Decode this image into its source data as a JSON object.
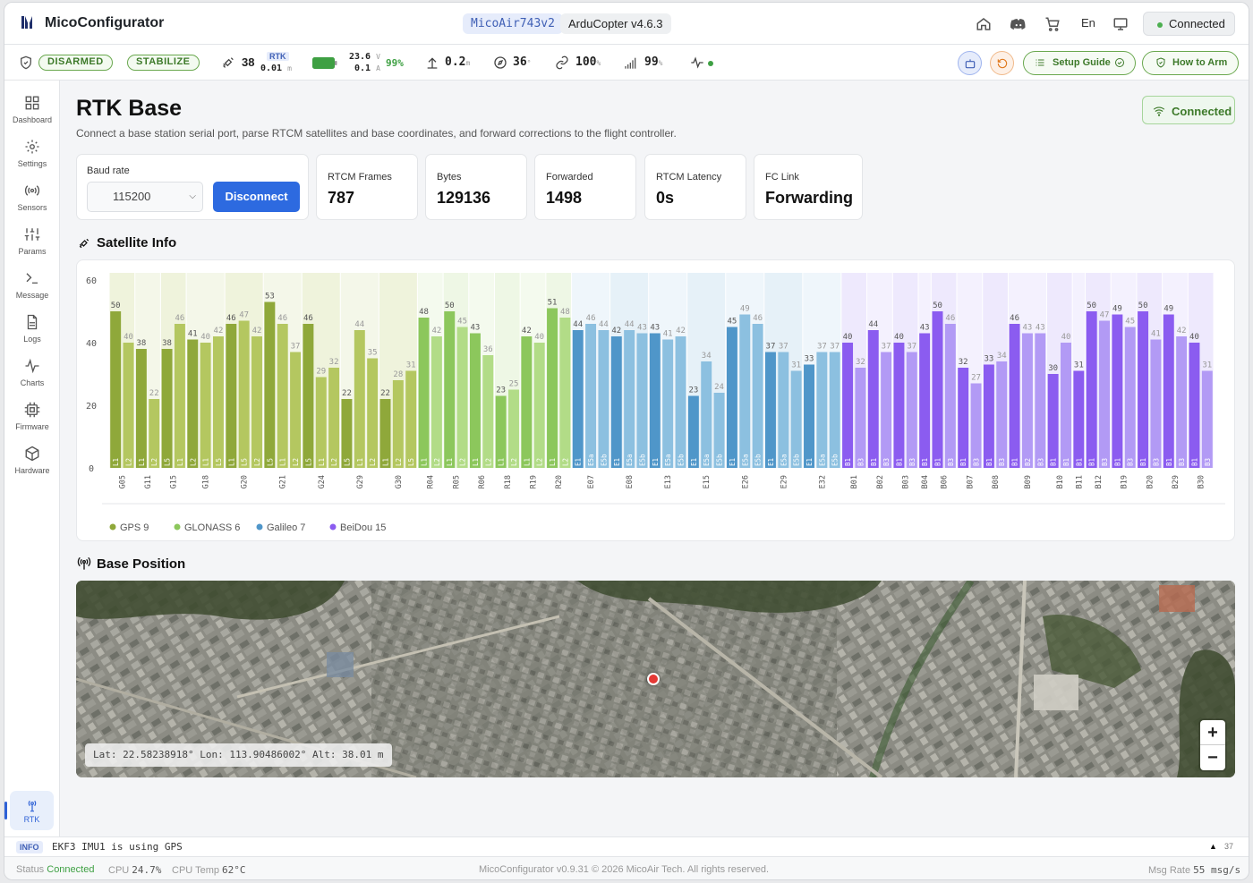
{
  "app": {
    "title": "MicoConfigurator",
    "board": "MicoAir743v2",
    "firmware": "ArduCopter v4.6.3",
    "language": "En",
    "connection": "Connected"
  },
  "status": {
    "arm": "DISARMED",
    "mode": "STABILIZE",
    "sats": "38",
    "fix_type": "RTK",
    "hacc": "0.01",
    "hacc_unit": "m",
    "voltage": "23.6",
    "voltage_unit": "V",
    "current": "0.1",
    "current_unit": "A",
    "battery": "99%",
    "altitude": "0.2",
    "altitude_unit": "m",
    "heading": "36",
    "heading_unit": "°",
    "link": "100",
    "link_unit": "%",
    "signal": "99",
    "signal_unit": "%",
    "setup_guide": "Setup Guide",
    "how_to_arm": "How to Arm"
  },
  "sidebar": {
    "items": [
      {
        "label": "Dashboard",
        "icon": "dashboard-icon"
      },
      {
        "label": "Settings",
        "icon": "gear-icon"
      },
      {
        "label": "Sensors",
        "icon": "sensors-icon"
      },
      {
        "label": "Params",
        "icon": "sliders-icon"
      },
      {
        "label": "Message",
        "icon": "terminal-icon"
      },
      {
        "label": "Logs",
        "icon": "file-icon"
      },
      {
        "label": "Charts",
        "icon": "chart-icon"
      },
      {
        "label": "Firmware",
        "icon": "chip-icon"
      },
      {
        "label": "Hardware",
        "icon": "cube-icon"
      }
    ],
    "active": {
      "label": "RTK",
      "icon": "antenna-icon"
    }
  },
  "page": {
    "title": "RTK Base",
    "subtitle": "Connect a base station serial port, parse RTCM satellites and base coordinates, and forward corrections to the flight controller.",
    "status": "Connected",
    "baud_label": "Baud rate",
    "baud_value": "115200",
    "disconnect": "Disconnect",
    "stats": [
      {
        "label": "RTCM Frames",
        "value": "787"
      },
      {
        "label": "Bytes",
        "value": "129136"
      },
      {
        "label": "Forwarded",
        "value": "1498"
      },
      {
        "label": "RTCM Latency",
        "value": "0s"
      },
      {
        "label": "FC Link",
        "value": "Forwarding"
      }
    ],
    "satellite_title": "Satellite Info",
    "position_title": "Base Position",
    "coords": "Lat: 22.58238918°  Lon: 113.90486002°  Alt: 38.01 m",
    "zoom_in": "+",
    "zoom_out": "−"
  },
  "chart_data": {
    "type": "bar",
    "ylim": [
      0,
      60
    ],
    "yticks": [
      0,
      20,
      40,
      60
    ],
    "legend": [
      "GPS 9",
      "GLONASS 6",
      "Galileo 7",
      "BeiDou 15"
    ],
    "colors": {
      "GPS": [
        "#8fa83a",
        "#b4c760"
      ],
      "GLONASS": [
        "#8cc75c",
        "#b2dc87"
      ],
      "Galileo": [
        "#4f96c9",
        "#8cc0e0"
      ],
      "BeiDou": [
        "#8b5cf0",
        "#b29af5"
      ]
    },
    "satellites": [
      {
        "id": "G05",
        "sys": "GPS",
        "signals": [
          [
            "L1",
            50
          ],
          [
            "L2",
            40
          ]
        ]
      },
      {
        "id": "G11",
        "sys": "GPS",
        "signals": [
          [
            "L1",
            38
          ],
          [
            "L2",
            22
          ]
        ]
      },
      {
        "id": "G15",
        "sys": "GPS",
        "signals": [
          [
            "L5",
            38
          ],
          [
            "L1",
            46
          ]
        ]
      },
      {
        "id": "G18",
        "sys": "GPS",
        "signals": [
          [
            "L2",
            41
          ],
          [
            "L1",
            40
          ],
          [
            "L5",
            42
          ]
        ]
      },
      {
        "id": "G20",
        "sys": "GPS",
        "signals": [
          [
            "L1",
            46
          ],
          [
            "L5",
            47
          ],
          [
            "L2",
            42
          ]
        ]
      },
      {
        "id": "G21",
        "sys": "GPS",
        "signals": [
          [
            "L5",
            53
          ],
          [
            "L1",
            46
          ],
          [
            "L2",
            37
          ]
        ]
      },
      {
        "id": "G24",
        "sys": "GPS",
        "signals": [
          [
            "L5",
            46
          ],
          [
            "L1",
            29
          ],
          [
            "L2",
            32
          ]
        ]
      },
      {
        "id": "G29",
        "sys": "GPS",
        "signals": [
          [
            "L5",
            22
          ],
          [
            "L1",
            44
          ],
          [
            "L2",
            35
          ]
        ]
      },
      {
        "id": "G30",
        "sys": "GPS",
        "signals": [
          [
            "L1",
            22
          ],
          [
            "L2",
            28
          ],
          [
            "L5",
            31
          ]
        ]
      },
      {
        "id": "R04",
        "sys": "GLONASS",
        "signals": [
          [
            "L1",
            48
          ],
          [
            "L2",
            42
          ]
        ]
      },
      {
        "id": "R05",
        "sys": "GLONASS",
        "signals": [
          [
            "L1",
            50
          ],
          [
            "L2",
            45
          ]
        ]
      },
      {
        "id": "R06",
        "sys": "GLONASS",
        "signals": [
          [
            "L1",
            43
          ],
          [
            "L2",
            36
          ]
        ]
      },
      {
        "id": "R18",
        "sys": "GLONASS",
        "signals": [
          [
            "L1",
            23
          ],
          [
            "L2",
            25
          ]
        ]
      },
      {
        "id": "R19",
        "sys": "GLONASS",
        "signals": [
          [
            "L1",
            42
          ],
          [
            "L2",
            40
          ]
        ]
      },
      {
        "id": "R20",
        "sys": "GLONASS",
        "signals": [
          [
            "L1",
            51
          ],
          [
            "L2",
            48
          ]
        ]
      },
      {
        "id": "E07",
        "sys": "Galileo",
        "signals": [
          [
            "E1",
            44
          ],
          [
            "E5a",
            46
          ],
          [
            "E5b",
            44
          ]
        ]
      },
      {
        "id": "E08",
        "sys": "Galileo",
        "signals": [
          [
            "E1",
            42
          ],
          [
            "E5a",
            44
          ],
          [
            "E5b",
            43
          ]
        ]
      },
      {
        "id": "E13",
        "sys": "Galileo",
        "signals": [
          [
            "E1",
            43
          ],
          [
            "E5a",
            41
          ],
          [
            "E5b",
            42
          ]
        ]
      },
      {
        "id": "E15",
        "sys": "Galileo",
        "signals": [
          [
            "E1",
            23
          ],
          [
            "E5a",
            34
          ],
          [
            "E5b",
            24
          ]
        ]
      },
      {
        "id": "E26",
        "sys": "Galileo",
        "signals": [
          [
            "E1",
            45
          ],
          [
            "E5a",
            49
          ],
          [
            "E5b",
            46
          ]
        ]
      },
      {
        "id": "E29",
        "sys": "Galileo",
        "signals": [
          [
            "E1",
            37
          ],
          [
            "E5a",
            37
          ],
          [
            "E5b",
            31
          ]
        ]
      },
      {
        "id": "E32",
        "sys": "Galileo",
        "signals": [
          [
            "E1",
            33
          ],
          [
            "E5a",
            37
          ],
          [
            "E5b",
            37
          ]
        ]
      },
      {
        "id": "B01",
        "sys": "BeiDou",
        "signals": [
          [
            "B1",
            40
          ],
          [
            "B3",
            32
          ]
        ]
      },
      {
        "id": "B02",
        "sys": "BeiDou",
        "signals": [
          [
            "B1",
            44
          ],
          [
            "B3",
            37
          ]
        ]
      },
      {
        "id": "B03",
        "sys": "BeiDou",
        "signals": [
          [
            "B1",
            40
          ],
          [
            "B3",
            37
          ]
        ]
      },
      {
        "id": "B04",
        "sys": "BeiDou",
        "signals": [
          [
            "B1",
            43
          ]
        ]
      },
      {
        "id": "B06",
        "sys": "BeiDou",
        "signals": [
          [
            "B1",
            50
          ],
          [
            "B3",
            46
          ]
        ]
      },
      {
        "id": "B07",
        "sys": "BeiDou",
        "signals": [
          [
            "B1",
            32
          ],
          [
            "B3",
            27
          ]
        ]
      },
      {
        "id": "B08",
        "sys": "BeiDou",
        "signals": [
          [
            "B1",
            33
          ],
          [
            "B3",
            34
          ]
        ]
      },
      {
        "id": "B09",
        "sys": "BeiDou",
        "signals": [
          [
            "B1",
            46
          ],
          [
            "B2",
            43
          ],
          [
            "B3",
            43
          ]
        ]
      },
      {
        "id": "B10",
        "sys": "BeiDou",
        "signals": [
          [
            "B1",
            30
          ],
          [
            "B1",
            40
          ]
        ]
      },
      {
        "id": "B11",
        "sys": "BeiDou",
        "signals": [
          [
            "B1",
            31
          ]
        ]
      },
      {
        "id": "B12",
        "sys": "BeiDou",
        "signals": [
          [
            "B1",
            50
          ],
          [
            "B3",
            47
          ]
        ]
      },
      {
        "id": "B19",
        "sys": "BeiDou",
        "signals": [
          [
            "B1",
            49
          ],
          [
            "B3",
            45
          ]
        ]
      },
      {
        "id": "B20",
        "sys": "BeiDou",
        "signals": [
          [
            "B1",
            50
          ],
          [
            "B3",
            41
          ]
        ]
      },
      {
        "id": "B29",
        "sys": "BeiDou",
        "signals": [
          [
            "B1",
            49
          ],
          [
            "B3",
            42
          ]
        ]
      },
      {
        "id": "B30",
        "sys": "BeiDou",
        "signals": [
          [
            "B1",
            40
          ],
          [
            "B3",
            31
          ]
        ]
      }
    ]
  },
  "log": {
    "level": "INFO",
    "message": "EKF3 IMU1 is using GPS",
    "count": "37"
  },
  "footer": {
    "status_label": "Status",
    "status_value": "Connected",
    "cpu_label": "CPU",
    "cpu_value": "24.7%",
    "temp_label": "CPU Temp",
    "temp_value": "62°C",
    "copyright": "MicoConfigurator v0.9.31 © 2026 MicoAir Tech. All rights reserved.",
    "rate_label": "Msg Rate",
    "rate_value": "55 msg/s"
  }
}
